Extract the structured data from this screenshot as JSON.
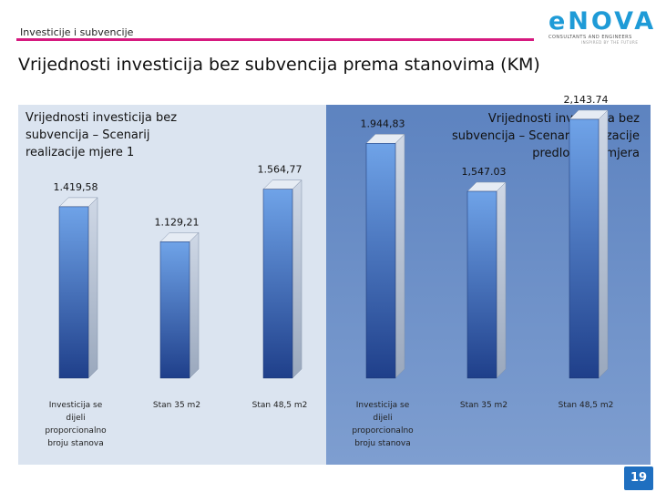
{
  "header": {
    "section": "Investicije i subvencije",
    "logo_text": "eNOVA",
    "logo_tagline": "CONSULTANTS AND ENGINEERS",
    "logo_subtagline": "INSPIRED BY THE FUTURE"
  },
  "title": "Vrijednosti investicija bez subvencija prema stanovima (KM)",
  "scenario_left": "Vrijednosti investicija bez subvencija – Scenarij realizacije mjere 1",
  "scenario_right": "Vrijednosti investicija bez subvencija – Scenarij realizacije predloženih mjera",
  "page_number": "19",
  "colors": {
    "bar_top": "#6fa3e8",
    "bar_bottom": "#1f3f8a",
    "accent": "#d6197f",
    "left_panel": "#dbe4f0",
    "right_panel": "#6a8ec8"
  },
  "chart_data": {
    "type": "bar",
    "ylim": [
      0,
      2300
    ],
    "groups": [
      {
        "name": "Scenarij realizacije mjere 1",
        "categories": [
          "Investicija se dijeli proporcionalno broju stanova",
          "Stan 35 m2",
          "Stan 48,5 m2"
        ],
        "values": [
          1419.58,
          1129.21,
          1564.77
        ],
        "labels": [
          "1.419,58",
          "1.129,21",
          "1.564,77"
        ]
      },
      {
        "name": "Scenarij realizacije predloženih mjera",
        "categories": [
          "Investicija se dijeli proporcionalno broju stanova",
          "Stan 35 m2",
          "Stan 48,5 m2"
        ],
        "values": [
          1944.83,
          1547.03,
          2143.74
        ],
        "labels": [
          "1.944,83",
          "1,547.03",
          "2,143.74"
        ]
      }
    ]
  }
}
